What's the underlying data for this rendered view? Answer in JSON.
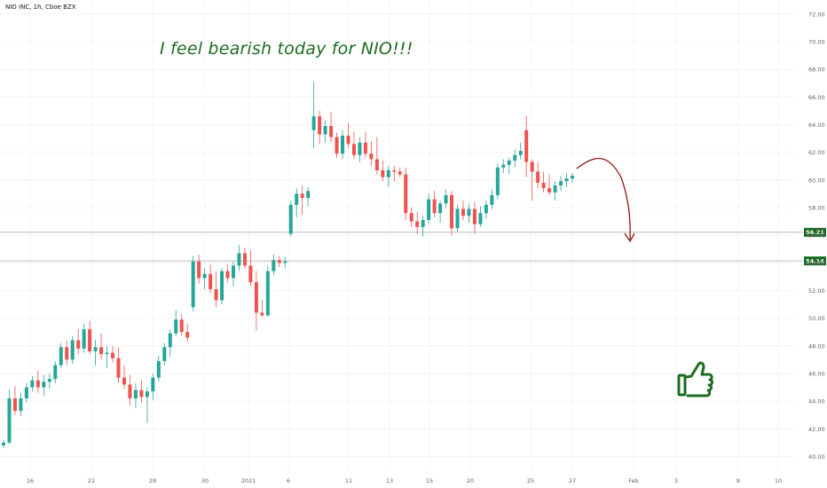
{
  "header": {
    "symbol_line": "NIO INC, 1h, Cboe BZX"
  },
  "annotation": {
    "text": "I feel bearish today for NIO!!!"
  },
  "icons": {
    "thumbs_up": "thumbs-up-icon",
    "projection_arrow": "curved-arrow-down"
  },
  "colors": {
    "up": "#26a69a",
    "down": "#ef5350",
    "annotation": "#1e6b23",
    "arrow": "#8b1a1a",
    "level_line": "#b2b5be",
    "badge": "#1e6b23"
  },
  "chart_data": {
    "type": "candlestick",
    "ylim": [
      39,
      72.5
    ],
    "y_ticks": [
      "40.00",
      "42.00",
      "44.00",
      "46.00",
      "48.00",
      "50.00",
      "52.00",
      "54.00",
      "56.00",
      "58.00",
      "60.00",
      "62.00",
      "64.00",
      "66.00",
      "68.00",
      "70.00",
      "72.00"
    ],
    "x_tick_labels": [
      "16",
      "21",
      "28",
      "30",
      "2021",
      "6",
      "11",
      "13",
      "15",
      "20",
      "25",
      "27",
      "Feb",
      "3",
      "8",
      "10"
    ],
    "levels": [
      {
        "value": 56.21,
        "label": "56.21"
      },
      {
        "value": 54.14,
        "label": "54.14"
      }
    ],
    "candles": [
      [
        40.8,
        41.2,
        40.6,
        41.0
      ],
      [
        41.0,
        44.8,
        40.9,
        44.2
      ],
      [
        44.2,
        45.1,
        43.0,
        43.3
      ],
      [
        43.3,
        44.6,
        42.9,
        44.2
      ],
      [
        44.2,
        45.3,
        43.9,
        45.0
      ],
      [
        45.0,
        45.8,
        44.7,
        45.5
      ],
      [
        45.5,
        46.2,
        44.6,
        45.0
      ],
      [
        45.0,
        45.9,
        44.4,
        45.4
      ],
      [
        45.4,
        46.0,
        44.9,
        45.6
      ],
      [
        45.6,
        46.9,
        45.3,
        46.6
      ],
      [
        46.6,
        48.2,
        46.4,
        47.9
      ],
      [
        47.9,
        48.4,
        46.6,
        47.0
      ],
      [
        47.0,
        48.7,
        46.7,
        48.4
      ],
      [
        48.4,
        49.2,
        47.4,
        47.8
      ],
      [
        47.8,
        49.6,
        47.5,
        49.2
      ],
      [
        49.2,
        49.8,
        47.4,
        47.6
      ],
      [
        47.6,
        48.4,
        46.6,
        47.9
      ],
      [
        47.9,
        48.9,
        47.0,
        47.4
      ],
      [
        47.4,
        48.0,
        46.4,
        47.5
      ],
      [
        47.5,
        48.0,
        46.8,
        47.1
      ],
      [
        47.1,
        47.9,
        45.3,
        45.7
      ],
      [
        45.7,
        46.6,
        44.9,
        45.2
      ],
      [
        45.2,
        45.9,
        43.7,
        44.2
      ],
      [
        44.2,
        45.3,
        43.5,
        44.8
      ],
      [
        44.8,
        45.5,
        43.9,
        44.3
      ],
      [
        44.3,
        45.0,
        42.4,
        44.7
      ],
      [
        44.7,
        46.0,
        44.1,
        45.7
      ],
      [
        45.7,
        47.3,
        45.4,
        46.9
      ],
      [
        46.9,
        48.2,
        46.6,
        47.9
      ],
      [
        47.9,
        49.2,
        47.2,
        48.9
      ],
      [
        48.9,
        50.6,
        48.7,
        49.9
      ],
      [
        49.9,
        50.3,
        48.7,
        49.0
      ],
      [
        49.0,
        49.6,
        48.3,
        48.6
      ],
      [
        50.8,
        54.5,
        50.5,
        54.1
      ],
      [
        54.1,
        54.6,
        52.5,
        52.9
      ],
      [
        52.9,
        53.6,
        52.1,
        53.2
      ],
      [
        53.2,
        53.9,
        51.8,
        52.1
      ],
      [
        52.1,
        53.4,
        50.8,
        51.3
      ],
      [
        51.3,
        53.6,
        51.0,
        53.4
      ],
      [
        53.4,
        53.9,
        52.6,
        52.9
      ],
      [
        52.9,
        54.1,
        52.3,
        53.8
      ],
      [
        53.8,
        55.3,
        53.4,
        54.7
      ],
      [
        54.7,
        55.1,
        53.6,
        53.8
      ],
      [
        53.8,
        54.9,
        52.3,
        52.6
      ],
      [
        52.6,
        53.4,
        49.1,
        50.4
      ],
      [
        50.4,
        51.3,
        50.1,
        50.2
      ],
      [
        50.2,
        53.8,
        50.1,
        53.4
      ],
      [
        53.4,
        54.6,
        53.1,
        54.2
      ],
      [
        54.2,
        54.5,
        53.7,
        54.0
      ],
      [
        54.0,
        54.4,
        53.6,
        54.1
      ],
      [
        56.1,
        58.5,
        55.9,
        58.2
      ],
      [
        58.2,
        59.4,
        57.3,
        59.0
      ],
      [
        59.0,
        59.6,
        57.5,
        58.7
      ],
      [
        58.7,
        59.5,
        58.1,
        59.2
      ],
      [
        63.6,
        67.1,
        62.3,
        64.6
      ],
      [
        64.6,
        65.0,
        62.6,
        63.3
      ],
      [
        63.3,
        64.3,
        62.7,
        63.9
      ],
      [
        63.9,
        64.9,
        62.7,
        63.1
      ],
      [
        63.1,
        63.4,
        61.6,
        61.9
      ],
      [
        61.9,
        63.6,
        61.5,
        63.2
      ],
      [
        63.2,
        64.1,
        62.3,
        62.6
      ],
      [
        62.6,
        63.5,
        61.5,
        61.8
      ],
      [
        61.8,
        63.1,
        61.3,
        62.7
      ],
      [
        62.7,
        63.5,
        61.6,
        61.9
      ],
      [
        61.9,
        62.8,
        61.0,
        61.5
      ],
      [
        61.5,
        63.1,
        60.4,
        60.7
      ],
      [
        60.7,
        61.4,
        59.9,
        60.2
      ],
      [
        60.2,
        61.0,
        59.5,
        60.7
      ],
      [
        60.7,
        61.0,
        59.9,
        60.6
      ],
      [
        60.6,
        60.9,
        60.2,
        60.4
      ],
      [
        60.4,
        60.9,
        57.1,
        57.6
      ],
      [
        57.6,
        58.0,
        56.6,
        57.0
      ],
      [
        57.0,
        57.7,
        56.1,
        56.6
      ],
      [
        56.6,
        57.4,
        55.9,
        57.1
      ],
      [
        57.1,
        59.0,
        56.8,
        58.6
      ],
      [
        58.6,
        59.2,
        57.3,
        57.6
      ],
      [
        57.6,
        58.5,
        56.9,
        58.3
      ],
      [
        58.3,
        59.3,
        58.0,
        58.9
      ],
      [
        58.9,
        59.2,
        56.0,
        56.5
      ],
      [
        56.5,
        58.2,
        56.2,
        57.9
      ],
      [
        57.9,
        58.5,
        57.1,
        57.4
      ],
      [
        57.4,
        58.3,
        56.9,
        57.9
      ],
      [
        57.9,
        58.4,
        56.1,
        56.8
      ],
      [
        56.8,
        58.1,
        56.6,
        57.6
      ],
      [
        57.6,
        58.5,
        57.2,
        58.2
      ],
      [
        58.2,
        59.3,
        57.9,
        58.9
      ],
      [
        58.9,
        61.2,
        58.6,
        60.9
      ],
      [
        60.9,
        61.5,
        60.5,
        61.1
      ],
      [
        61.1,
        61.6,
        60.4,
        61.4
      ],
      [
        61.4,
        62.2,
        60.9,
        61.8
      ],
      [
        61.8,
        62.7,
        61.5,
        62.1
      ],
      [
        63.6,
        64.6,
        60.2,
        61.3
      ],
      [
        61.3,
        61.5,
        58.5,
        60.6
      ],
      [
        60.6,
        61.3,
        59.4,
        59.8
      ],
      [
        59.8,
        60.6,
        59.1,
        59.4
      ],
      [
        59.4,
        60.4,
        58.9,
        59.1
      ],
      [
        59.1,
        59.9,
        58.5,
        59.6
      ],
      [
        59.6,
        60.3,
        59.2,
        59.9
      ],
      [
        59.9,
        60.5,
        59.5,
        60.1
      ],
      [
        60.1,
        60.5,
        59.8,
        60.3
      ]
    ]
  }
}
